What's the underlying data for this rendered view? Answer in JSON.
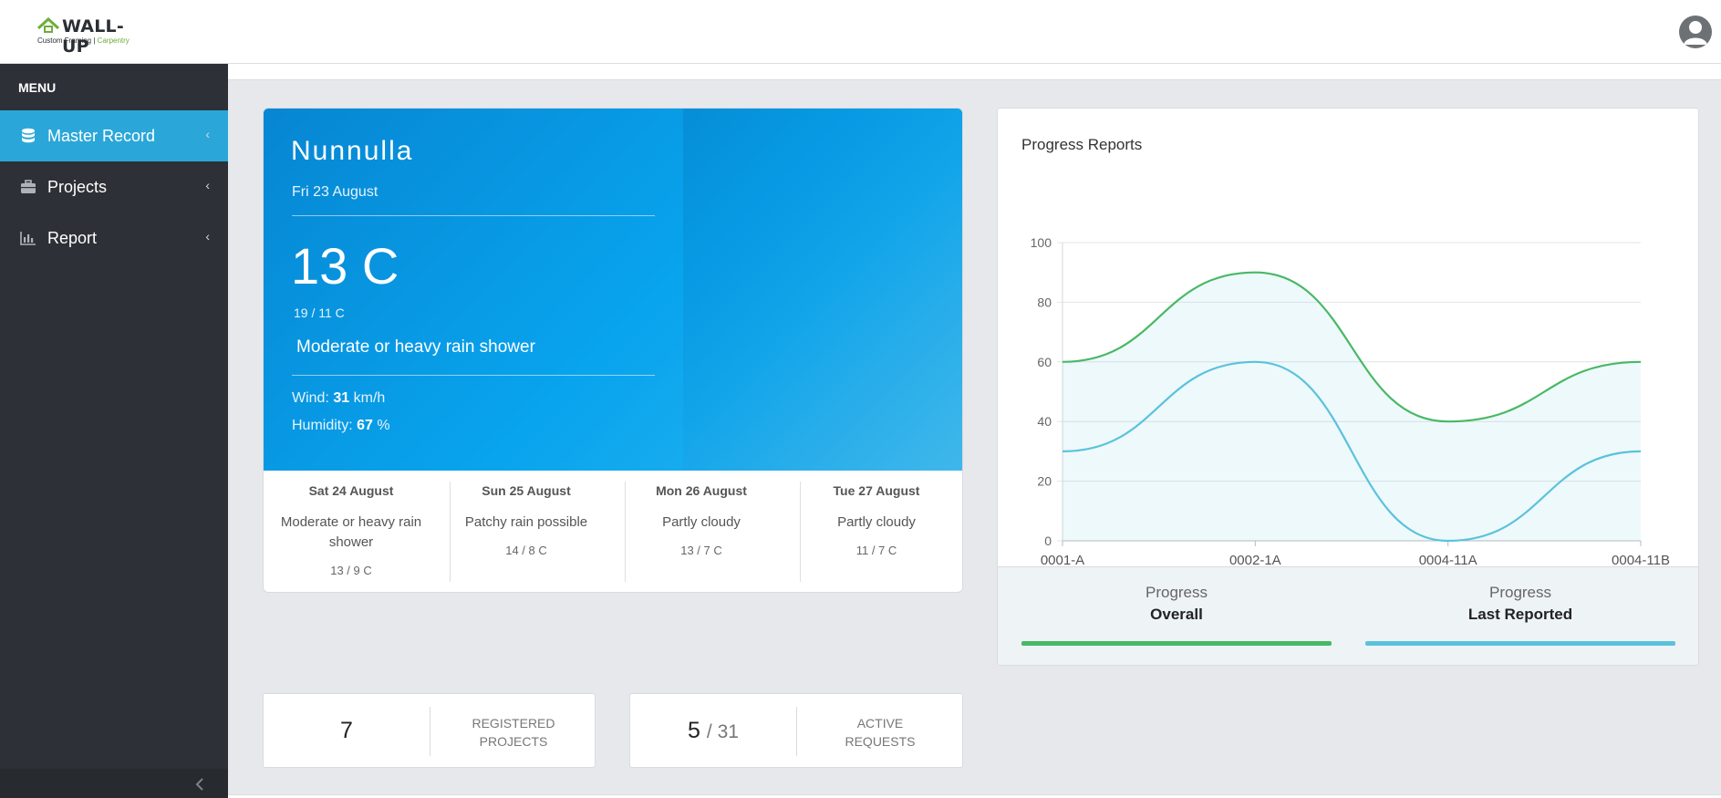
{
  "header": {
    "logo_title": "WALL-UP",
    "logo_sub_left": "Custom Framing",
    "logo_sub_sep": "|",
    "logo_sub_right": "Carpentry"
  },
  "sidebar": {
    "menu_title": "MENU",
    "items": [
      {
        "label": "Master Record",
        "icon": "database-icon",
        "active": true
      },
      {
        "label": "Projects",
        "icon": "briefcase-icon",
        "active": false
      },
      {
        "label": "Report",
        "icon": "bar-chart-icon",
        "active": false
      }
    ],
    "chevron": "‹"
  },
  "weather": {
    "city": "Nunnulla",
    "date": "Fri 23 August",
    "temp": "13 C",
    "range": "19 / 11 C",
    "condition": "Moderate or heavy rain shower",
    "wind_label": "Wind:",
    "wind_value": "31",
    "wind_unit": "km/h",
    "humidity_label": "Humidity:",
    "humidity_value": "67",
    "humidity_unit": "%",
    "forecast": [
      {
        "day": "Sat 24 August",
        "condition": "Moderate or heavy rain shower",
        "range": "13 / 9 C"
      },
      {
        "day": "Sun 25 August",
        "condition": "Patchy rain possible",
        "range": "14 / 8 C"
      },
      {
        "day": "Mon 26 August",
        "condition": "Partly cloudy",
        "range": "13 / 7 C"
      },
      {
        "day": "Tue 27 August",
        "condition": "Partly cloudy",
        "range": "11 / 7 C"
      }
    ]
  },
  "progress": {
    "title": "Progress Reports",
    "legend": [
      {
        "top": "Progress",
        "bottom": "Overall",
        "color": "#48b865"
      },
      {
        "top": "Progress",
        "bottom": "Last Reported",
        "color": "#5bc2dc"
      }
    ]
  },
  "chart_data": {
    "type": "area",
    "categories": [
      "0001-A",
      "0002-1A",
      "0004-11A",
      "0004-11B"
    ],
    "series": [
      {
        "name": "Overall",
        "values": [
          60,
          90,
          40,
          60
        ],
        "color": "#48b865"
      },
      {
        "name": "Last Reported",
        "values": [
          30,
          60,
          0,
          30
        ],
        "color": "#5bc2dc"
      }
    ],
    "ylim": [
      0,
      100
    ],
    "yticks": [
      0,
      20,
      40,
      60,
      80,
      100
    ],
    "grid": true
  },
  "stats": [
    {
      "value": "7",
      "sub": "",
      "label_line1": "REGISTERED",
      "label_line2": "PROJECTS"
    },
    {
      "value": "5",
      "sub": "/ 31",
      "label_line1": "ACTIVE",
      "label_line2": "REQUESTS"
    }
  ]
}
